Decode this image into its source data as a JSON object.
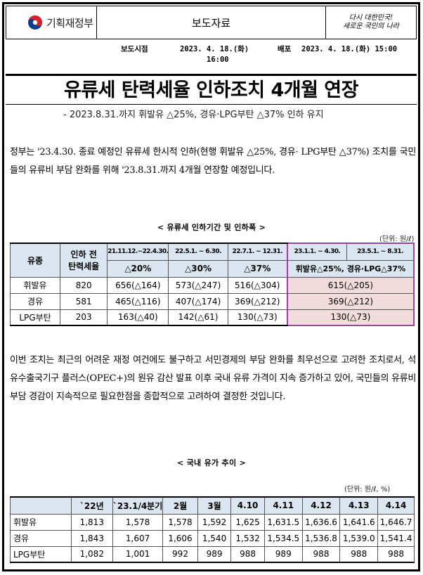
{
  "header": {
    "ministry_name": "기획재정부",
    "doc_type": "보도자료",
    "slogan_line1": "다시 대한민국!",
    "slogan_line2": "새로운 국민의 나라"
  },
  "dates": {
    "embargo_label": "보도시점",
    "embargo_value_line1": "2023. 4. 18.(화)",
    "embargo_value_line2": "16:00",
    "release_label": "배포",
    "release_value": "2023. 4. 18.(화) 15:00"
  },
  "title": "유류세 탄력세율 인하조치 4개월 연장",
  "subtitle": "- 2023.8.31.까지 휘발유 △25%, 경유·LPG부탄 △37% 인하 유지",
  "paragraph1": "  정부는 '23.4.30. 종료 예정인 유류세 한시적 인하(현행 휘발유 △25%, 경유· LPG부탄 △37%) 조치를 국민들의 유류비 부담 완화를 위해 '23.8.31.까지 4개월 연장할 예정입니다.",
  "table1": {
    "caption": "< 유류세 인하기간 및 인하폭 >",
    "unit": "(단위: 원/ℓ)",
    "col_fuel": "유종",
    "col_before_line1": "인하 전",
    "col_before_line2": "탄력세율",
    "periods": [
      "21.11.12.~22.4.30.",
      "22.5.1. ~ 6.30.",
      "22.7.1. ~ 12.31.",
      "23.1.1. ~ 4.30.",
      "23.5.1. ~ 8.31."
    ],
    "rates": [
      "△20%",
      "△30%",
      "△37%",
      "휘발유△25%, 경유·LPG△37%"
    ],
    "rows": [
      {
        "fuel": "휘발유",
        "before": "820",
        "p1": "656(△164)",
        "p2": "573(△247)",
        "p3": "516(△304)",
        "p4": "615(△205)"
      },
      {
        "fuel": "경유",
        "before": "581",
        "p1": "465(△116)",
        "p2": "407(△174)",
        "p3": "369(△212)",
        "p4": "369(△212)"
      },
      {
        "fuel": "LPG부탄",
        "before": "203",
        "p1": "163(△40)",
        "p2": "142(△61)",
        "p3": "130(△73)",
        "p4": "130(△73)"
      }
    ]
  },
  "paragraph2": "  이번 조치는 최근의 어려운 재정 여건에도 불구하고 서민경제의 부담 완화를 최우선으로 고려한 조치로서, 석유수출국기구 플러스(OPEC+)의 원유 감산 발표 이후 국내 유류 가격이 지속 증가하고 있어, 국민들의 유류비 부담 경감이 지속적으로 필요한점을 종합적으로 고려하여 결정한 것입니다.",
  "table2": {
    "caption": "< 국내 유가 추이 >",
    "unit": "(단위: 원/ℓ, %)",
    "columns": [
      "",
      "`22년",
      "`23.1/4분기",
      "2월",
      "3월",
      "4.10",
      "4.11",
      "4.12",
      "4.13",
      "4.14"
    ],
    "rows": [
      {
        "fuel": "휘발유",
        "values": [
          "1,813",
          "1,578",
          "1,578",
          "1,592",
          "1,625",
          "1,631.5",
          "1,636.6",
          "1,641.6",
          "1,646.7"
        ]
      },
      {
        "fuel": "경유",
        "values": [
          "1,843",
          "1,607",
          "1,606",
          "1,540",
          "1,532",
          "1,534.5",
          "1,536.8",
          "1,539.0",
          "1,541.4"
        ]
      },
      {
        "fuel": "LPG부탄",
        "values": [
          "1,082",
          "1,001",
          "992",
          "989",
          "988",
          "989",
          "988",
          "988",
          "988"
        ]
      }
    ]
  }
}
